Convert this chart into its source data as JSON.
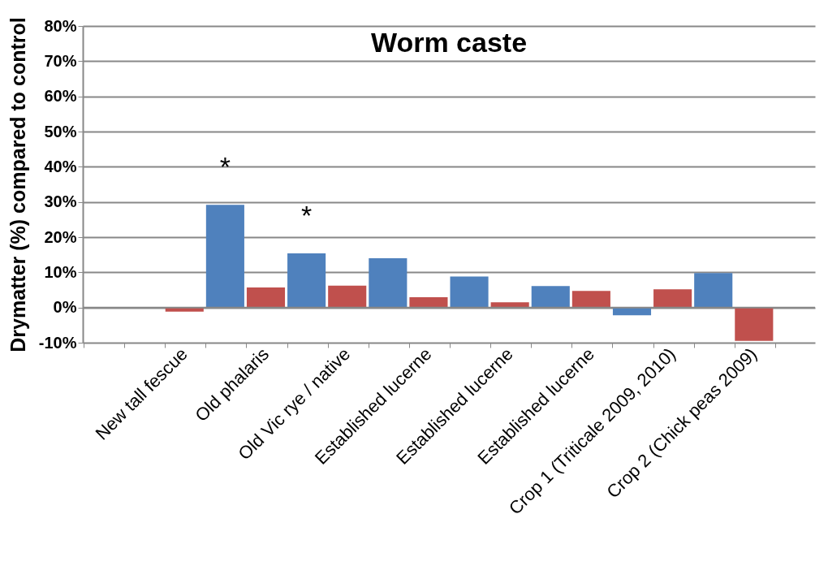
{
  "chart_data": {
    "type": "bar",
    "title": "Worm caste",
    "ylabel": "Drymatter (%) compared to control",
    "categories": [
      null,
      null,
      "New tall fescue",
      null,
      "Old phalaris",
      null,
      "Old Vic rye / native",
      null,
      "Established lucerne",
      null,
      "Established lucerne",
      null,
      "Established lucerne",
      null,
      "Crop 1 (Triticale 2009, 2010)",
      null,
      "Crop 2 (Chick peas 2009)",
      null
    ],
    "values": [
      null,
      null,
      -1.2,
      29.2,
      5.7,
      15.4,
      6.2,
      14.0,
      2.9,
      8.8,
      1.5,
      6.1,
      4.7,
      -2.2,
      5.2,
      9.8,
      -9.5,
      null
    ],
    "colors": [
      "#4f81bd",
      "#c0504d",
      "#c0504d",
      "#4f81bd",
      "#c0504d",
      "#4f81bd",
      "#c0504d",
      "#4f81bd",
      "#c0504d",
      "#4f81bd",
      "#c0504d",
      "#4f81bd",
      "#c0504d",
      "#4f81bd",
      "#c0504d",
      "#4f81bd",
      "#c0504d",
      "#4f81bd"
    ],
    "ylim": [
      -10,
      80
    ],
    "yticks": [
      {
        "value": -10,
        "label": "-10%"
      },
      {
        "value": 0,
        "label": "0%"
      },
      {
        "value": 10,
        "label": "10%"
      },
      {
        "value": 20,
        "label": "20%"
      },
      {
        "value": 30,
        "label": "30%"
      },
      {
        "value": 40,
        "label": "40%"
      },
      {
        "value": 50,
        "label": "50%"
      },
      {
        "value": 60,
        "label": "60%"
      },
      {
        "value": 70,
        "label": "70%"
      },
      {
        "value": 80,
        "label": "80%"
      }
    ],
    "grid": "y",
    "legend": false,
    "annotations": [
      "*",
      "*"
    ]
  }
}
